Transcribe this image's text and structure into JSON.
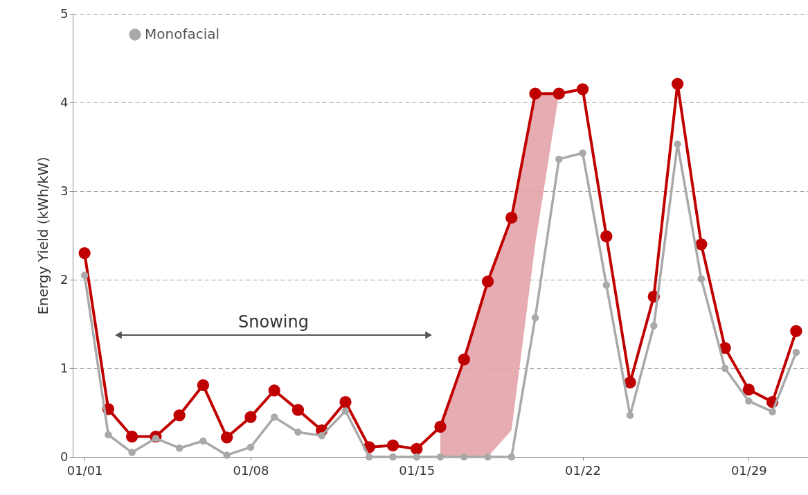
{
  "chart_data": {
    "type": "line",
    "ylabel": "Energy Yield (kWh/kW)",
    "categories": [
      "01/01",
      null,
      null,
      null,
      null,
      null,
      null,
      "01/08",
      null,
      null,
      null,
      null,
      null,
      null,
      "01/15",
      null,
      null,
      null,
      null,
      null,
      null,
      "01/22",
      null,
      null,
      null,
      null,
      null,
      null,
      "01/29",
      null,
      null
    ],
    "series": [
      {
        "name": "Monofacial",
        "color": "#a9a9a9",
        "values": [
          2.05,
          0.25,
          0.05,
          0.21,
          0.1,
          0.18,
          0.02,
          0.11,
          0.45,
          0.28,
          0.24,
          0.52,
          0,
          0,
          0,
          0,
          0,
          0,
          0,
          1.57,
          3.36,
          3.43,
          1.94,
          0.47,
          1.48,
          3.53,
          2.01,
          1.0,
          0.63,
          0.51,
          1.18
        ]
      },
      {
        "color": "#c00000",
        "values": [
          2.3,
          0.54,
          0.23,
          0.23,
          0.47,
          0.81,
          0.22,
          0.45,
          0.75,
          0.53,
          0.3,
          0.62,
          0.11,
          0.13,
          0.09,
          0.34,
          1.1,
          1.98,
          2.7,
          4.1,
          4.1,
          4.15,
          2.49,
          0.84,
          1.81,
          4.21,
          2.4,
          1.23,
          0.76,
          0.62,
          1.42
        ],
        "lower": [
          null,
          null,
          null,
          null,
          null,
          null,
          null,
          null,
          null,
          null,
          null,
          null,
          null,
          null,
          null,
          0,
          0,
          0,
          0.3,
          2.4,
          4.1,
          null,
          null,
          null,
          null,
          null,
          null,
          null,
          null,
          null,
          null
        ],
        "upper": [
          null,
          null,
          null,
          null,
          null,
          null,
          null,
          null,
          null,
          null,
          null,
          null,
          null,
          null,
          null,
          0.34,
          1.1,
          1.98,
          2.7,
          4.1,
          4.1,
          null,
          null,
          null,
          null,
          null,
          null,
          null,
          null,
          null,
          null
        ]
      }
    ],
    "ylim": [
      0,
      5
    ],
    "yticks": [
      0,
      1,
      2,
      3,
      4,
      5
    ],
    "grid": "y",
    "legend": "top left",
    "marker": "circle",
    "line_style": "solid",
    "annotations": [
      "Snowing"
    ]
  }
}
